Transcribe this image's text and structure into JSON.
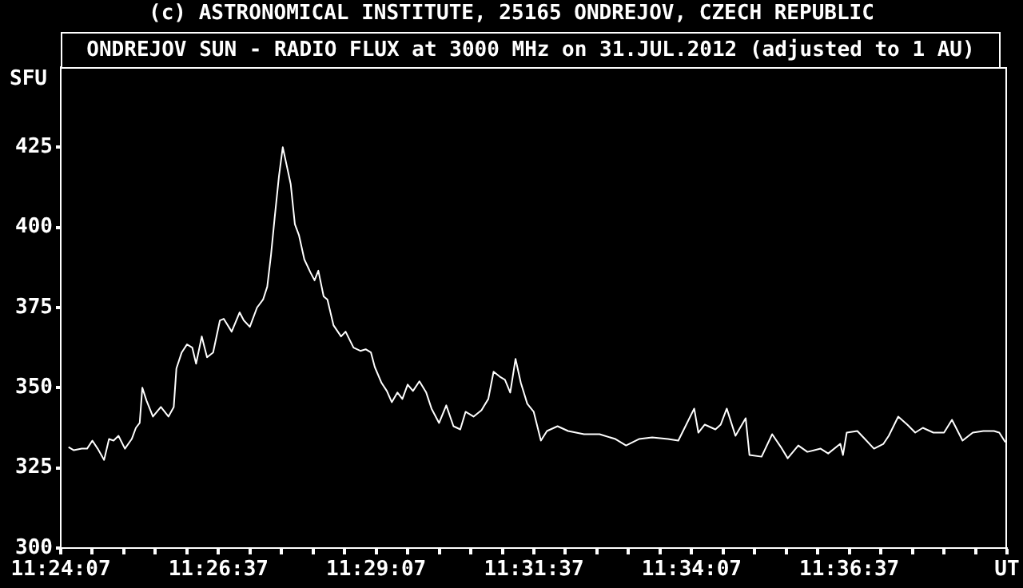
{
  "chart_data": {
    "type": "line",
    "title": "ONDREJOV SUN - RADIO FLUX at 3000 MHz on 31.JUL.2012 (adjusted to 1 AU)",
    "ylabel": "SFU",
    "annotations": [
      "(c) ASTRONOMICAL INSTITUTE, 25165 ONDREJOV, CZECH REPUBLIC"
    ],
    "x": [
      11.404,
      11.4054,
      11.4075,
      11.4089,
      11.4103,
      11.4117,
      11.4134,
      11.4147,
      11.4159,
      11.4172,
      11.4189,
      11.4207,
      11.4218,
      11.4228,
      11.4235,
      11.4246,
      11.4263,
      11.4284,
      11.4304,
      11.4318,
      11.4325,
      11.4339,
      11.4353,
      11.4367,
      11.4377,
      11.4392,
      11.4406,
      11.4422,
      11.444,
      11.445,
      11.4471,
      11.4492,
      11.4503,
      11.4519,
      11.4538,
      11.4554,
      11.4565,
      11.4575,
      11.4585,
      11.4596,
      11.4606,
      11.4617,
      11.4627,
      11.4638,
      11.4649,
      11.4663,
      11.4679,
      11.469,
      11.47,
      11.4714,
      11.4724,
      11.474,
      11.476,
      11.4772,
      11.4793,
      11.4811,
      11.4825,
      11.4839,
      11.4849,
      11.4867,
      11.4881,
      11.4894,
      11.4909,
      11.4922,
      11.4936,
      11.495,
      11.4967,
      11.4985,
      11.4999,
      11.5019,
      11.5038,
      11.5057,
      11.5075,
      11.5089,
      11.511,
      11.5131,
      11.5149,
      11.5163,
      11.5179,
      11.5193,
      11.5207,
      11.5221,
      11.5235,
      11.5252,
      11.5269,
      11.5288,
      11.5304,
      11.5332,
      11.536,
      11.5402,
      11.5443,
      11.5485,
      11.5513,
      11.5547,
      11.5582,
      11.5624,
      11.5651,
      11.5672,
      11.5693,
      11.5704,
      11.5721,
      11.5749,
      11.5763,
      11.5779,
      11.5802,
      11.5829,
      11.5839,
      11.5871,
      11.5899,
      11.5922,
      11.594,
      11.5968,
      11.5992,
      11.6027,
      11.6047,
      11.6079,
      11.6086,
      11.6096,
      11.6124,
      11.6144,
      11.6168,
      11.6193,
      11.6207,
      11.6232,
      11.6256,
      11.6277,
      11.6297,
      11.6325,
      11.6353,
      11.6374,
      11.6402,
      11.6429,
      11.6457,
      11.6485,
      11.6499,
      11.6515
    ],
    "series": [
      {
        "color": "#ffffff",
        "values": [
          331.5,
          330.5,
          331,
          331,
          333.5,
          331,
          327.5,
          334,
          333.5,
          335,
          331,
          334,
          337.5,
          339,
          350,
          346,
          341,
          344,
          341,
          344,
          356,
          361,
          363.5,
          362.5,
          357.5,
          366,
          359.5,
          361,
          371,
          371.5,
          367.5,
          373.5,
          371,
          369,
          375,
          377.5,
          381.5,
          391.5,
          403.5,
          416,
          425,
          419,
          413.5,
          401,
          397.5,
          390,
          386,
          383.5,
          386.5,
          378.5,
          377.5,
          369.5,
          366,
          367.5,
          362.5,
          361.5,
          362,
          361,
          356.5,
          351.5,
          349,
          345.5,
          348.5,
          346.5,
          351,
          349,
          352,
          348.5,
          343.5,
          339,
          344.5,
          338,
          337,
          342.5,
          341,
          343,
          346.5,
          355,
          353.5,
          352.5,
          348.5,
          359,
          351.5,
          345,
          342.5,
          333.5,
          336.5,
          338,
          336.5,
          335.5,
          335.5,
          334,
          332,
          334,
          334.5,
          334,
          333.5,
          338.5,
          343.5,
          336,
          338.5,
          337,
          338.5,
          343.5,
          335,
          340.5,
          329,
          328.5,
          335.5,
          331.5,
          328,
          332,
          330,
          331,
          329.5,
          332.5,
          329,
          336,
          336.5,
          334,
          331,
          332.5,
          335,
          341,
          338.5,
          336,
          337.5,
          336,
          336,
          340,
          333.5,
          336,
          336.5,
          336.5,
          336,
          333
        ]
      }
    ],
    "xlim": [
      11.401944,
      11.651944
    ],
    "xticks": [
      {
        "value": 11.401944,
        "label": "11:24:07"
      },
      {
        "value": 11.410278,
        "label": null
      },
      {
        "value": 11.418611,
        "label": null
      },
      {
        "value": 11.426944,
        "label": null
      },
      {
        "value": 11.435278,
        "label": null
      },
      {
        "value": 11.443611,
        "label": "11:26:37"
      },
      {
        "value": 11.451944,
        "label": null
      },
      {
        "value": 11.460278,
        "label": null
      },
      {
        "value": 11.468611,
        "label": null
      },
      {
        "value": 11.476944,
        "label": null
      },
      {
        "value": 11.485278,
        "label": "11:29:07"
      },
      {
        "value": 11.493611,
        "label": null
      },
      {
        "value": 11.501944,
        "label": null
      },
      {
        "value": 11.510278,
        "label": null
      },
      {
        "value": 11.518611,
        "label": null
      },
      {
        "value": 11.526944,
        "label": "11:31:37"
      },
      {
        "value": 11.535278,
        "label": null
      },
      {
        "value": 11.543611,
        "label": null
      },
      {
        "value": 11.551944,
        "label": null
      },
      {
        "value": 11.560278,
        "label": null
      },
      {
        "value": 11.568611,
        "label": "11:34:07"
      },
      {
        "value": 11.576944,
        "label": null
      },
      {
        "value": 11.585278,
        "label": null
      },
      {
        "value": 11.593611,
        "label": null
      },
      {
        "value": 11.601944,
        "label": null
      },
      {
        "value": 11.610278,
        "label": "11:36:37"
      },
      {
        "value": 11.618611,
        "label": null
      },
      {
        "value": 11.626944,
        "label": null
      },
      {
        "value": 11.635278,
        "label": null
      },
      {
        "value": 11.643611,
        "label": null
      },
      {
        "value": 11.651944,
        "label": "UT"
      }
    ],
    "ylim": [
      300,
      450
    ],
    "yticks": [
      300,
      325,
      350,
      375,
      400,
      425
    ],
    "grid": false,
    "legend": false,
    "marker": "none",
    "line_style": "solid"
  }
}
